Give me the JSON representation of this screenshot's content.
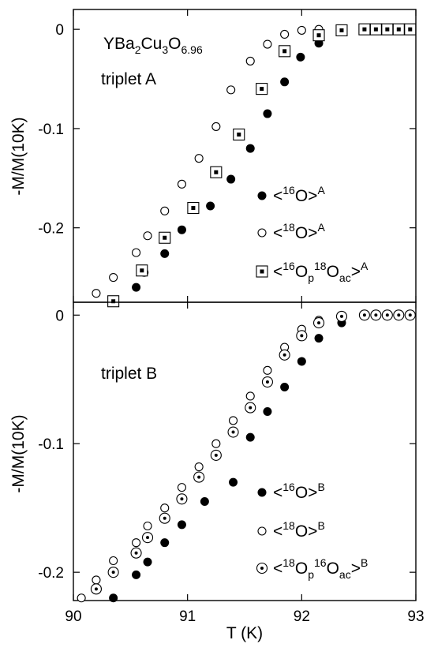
{
  "chart_data": [
    {
      "type": "scatter",
      "panel": "triplet-a",
      "annotations": [
        "YBa2Cu3O6.96",
        "triplet A"
      ],
      "formula": {
        "base": "YBa",
        "s1": "2",
        "m1": "Cu",
        "s2": "3",
        "m2": "O",
        "s3": "6.96"
      },
      "panel_label": "triplet A",
      "xlabel": "",
      "ylabel": "-M/M(10K)",
      "xlim": [
        90,
        93
      ],
      "ylim": [
        -0.275,
        0.02
      ],
      "yticks": [
        0,
        -0.1,
        -0.2
      ],
      "ytick_labels": [
        "0",
        "-0.1",
        "-0.2"
      ],
      "grid": false,
      "legend_position": "lower-right",
      "series": [
        {
          "name": "<16O>A",
          "legend": {
            "pre": "<",
            "sup1": "16",
            "mid": "O>",
            "sup2": "A"
          },
          "marker": "filled-circle",
          "x": [
            90.55,
            90.62,
            90.8,
            90.95,
            91.2,
            91.38,
            91.55,
            91.7,
            91.85,
            91.99,
            92.15
          ],
          "y": [
            -0.26,
            -0.245,
            -0.226,
            -0.202,
            -0.178,
            -0.151,
            -0.12,
            -0.085,
            -0.053,
            -0.028,
            -0.014
          ]
        },
        {
          "name": "<18O>A",
          "legend": {
            "pre": "<",
            "sup1": "18",
            "mid": "O>",
            "sup2": "A"
          },
          "marker": "open-circle",
          "x": [
            90.2,
            90.35,
            90.55,
            90.65,
            90.8,
            90.95,
            91.1,
            91.25,
            91.38,
            91.55,
            91.7,
            91.85,
            92.0,
            92.15
          ],
          "y": [
            -0.266,
            -0.25,
            -0.225,
            -0.208,
            -0.183,
            -0.156,
            -0.13,
            -0.098,
            -0.061,
            -0.032,
            -0.015,
            -0.005,
            -0.001,
            0.0
          ]
        },
        {
          "name": "<16Op18Oac>A",
          "legend": {
            "pre": "<",
            "sup1": "16",
            "mid": "O",
            "sub1": "p",
            "sup2": "18",
            "mid2": "O",
            "sub2": "ac",
            "end": ">",
            "sup3": "A"
          },
          "marker": "dotted-square",
          "x": [
            90.35,
            90.6,
            90.8,
            91.05,
            91.25,
            91.45,
            91.65,
            91.85,
            92.15,
            92.35,
            92.55,
            92.65,
            92.75,
            92.85,
            92.95
          ],
          "y": [
            -0.274,
            -0.243,
            -0.21,
            -0.18,
            -0.144,
            -0.106,
            -0.06,
            -0.022,
            -0.006,
            -0.001,
            0.0,
            0.0,
            0.0,
            0.0,
            0.0
          ]
        }
      ]
    },
    {
      "type": "scatter",
      "panel": "triplet-b",
      "annotations": [
        "triplet B"
      ],
      "panel_label": "triplet B",
      "xlabel": "T (K)",
      "ylabel": "-M/M(10K)",
      "xlim": [
        90,
        93
      ],
      "ylim": [
        -0.222,
        0.01
      ],
      "xticks": [
        90,
        91,
        92,
        93
      ],
      "xtick_labels": [
        "90",
        "91",
        "92",
        "93"
      ],
      "yticks": [
        0,
        -0.1,
        -0.2
      ],
      "ytick_labels": [
        "0",
        "-0.1",
        "-0.2"
      ],
      "grid": false,
      "legend_position": "lower-right",
      "series": [
        {
          "name": "<16O>B",
          "legend": {
            "pre": "<",
            "sup1": "16",
            "mid": "O>",
            "sup2": "B"
          },
          "marker": "filled-circle",
          "x": [
            90.35,
            90.55,
            90.65,
            90.8,
            90.95,
            91.15,
            91.4,
            91.55,
            91.7,
            91.85,
            92.0,
            92.15,
            92.35
          ],
          "y": [
            -0.22,
            -0.202,
            -0.192,
            -0.177,
            -0.163,
            -0.145,
            -0.13,
            -0.095,
            -0.075,
            -0.056,
            -0.036,
            -0.018,
            -0.006
          ]
        },
        {
          "name": "<18O>B",
          "legend": {
            "pre": "<",
            "sup1": "18",
            "mid": "O>",
            "sup2": "B"
          },
          "marker": "open-circle",
          "x": [
            90.07,
            90.2,
            90.35,
            90.55,
            90.65,
            90.8,
            90.95,
            91.1,
            91.25,
            91.4,
            91.55,
            91.7,
            91.85,
            92.0,
            92.15
          ],
          "y": [
            -0.22,
            -0.206,
            -0.191,
            -0.177,
            -0.164,
            -0.15,
            -0.134,
            -0.118,
            -0.1,
            -0.082,
            -0.063,
            -0.043,
            -0.025,
            -0.011,
            -0.004
          ]
        },
        {
          "name": "<18Op16Oac>B",
          "legend": {
            "pre": "<",
            "sup1": "18",
            "mid": "O",
            "sub1": "p",
            "sup2": "16",
            "mid2": "O",
            "sub2": "ac",
            "end": ">",
            "sup3": "B"
          },
          "marker": "dotted-circle",
          "x": [
            90.2,
            90.35,
            90.55,
            90.65,
            90.8,
            90.95,
            91.1,
            91.25,
            91.4,
            91.55,
            91.7,
            91.85,
            92.0,
            92.15,
            92.35,
            92.55,
            92.65,
            92.75,
            92.85,
            92.95
          ],
          "y": [
            -0.213,
            -0.2,
            -0.185,
            -0.173,
            -0.158,
            -0.143,
            -0.126,
            -0.109,
            -0.091,
            -0.072,
            -0.052,
            -0.031,
            -0.016,
            -0.006,
            -0.001,
            0.0,
            0.0,
            0.0,
            0.0,
            0.0
          ]
        }
      ]
    }
  ]
}
